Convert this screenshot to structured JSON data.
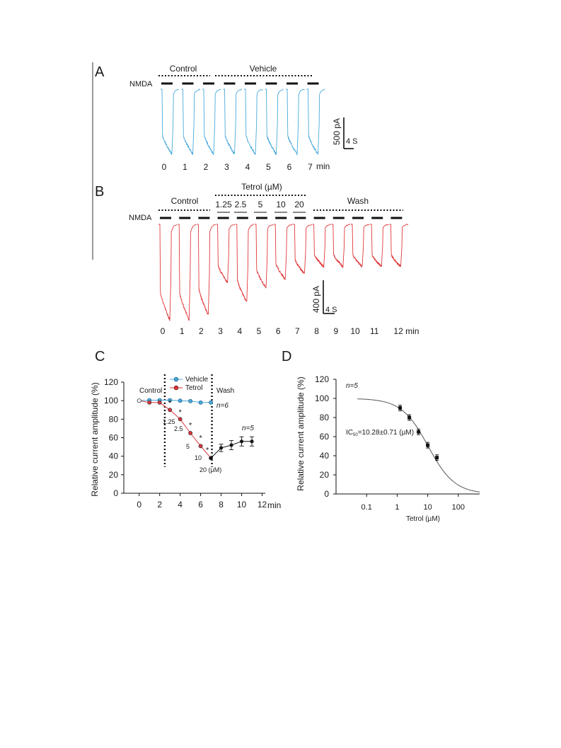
{
  "panels": {
    "A": {
      "letter": "A",
      "groups": [
        "Control",
        "Vehicle"
      ],
      "nmda": "NMDA",
      "scale_current": "500 pA",
      "scale_time": "4 S",
      "times": [
        "0",
        "1",
        "2",
        "3",
        "4",
        "5",
        "6",
        "7"
      ],
      "time_unit": "min",
      "trace_color": "#4aa9dc"
    },
    "B": {
      "letter": "B",
      "groups": [
        "Control",
        "Tetrol (µM)",
        "Wash"
      ],
      "concentrations": [
        "1.25",
        "2.5",
        "5",
        "10",
        "20"
      ],
      "nmda": "NMDA",
      "scale_current": "400 pA",
      "scale_time": "4 S",
      "times": [
        "0",
        "1",
        "2",
        "3",
        "4",
        "5",
        "6",
        "7",
        "8",
        "9",
        "10",
        "11",
        "12 min"
      ],
      "trace_color": "#e0393b"
    },
    "C": {
      "letter": "C",
      "ylabel": "Relative current amplitude (%)",
      "legend": [
        "Vehicle",
        "Tetrol"
      ],
      "phase_labels": [
        "Control",
        "Wash"
      ],
      "n_labels": [
        "n=6",
        "n=5"
      ],
      "conc_labels": [
        "1.25",
        "2.5",
        "5",
        "10",
        "20 (µM)"
      ],
      "sig": "*",
      "x_unit": "min"
    },
    "D": {
      "letter": "D",
      "ylabel": "Relative current amplitude (%)",
      "xlabel": "Tetrol (µM)",
      "n_label": "n=5",
      "ic50_label": "IC",
      "ic50_sub": "50",
      "ic50_value": "=10.28±0.71 (µM)"
    }
  },
  "chart_data": [
    {
      "type": "line",
      "panel": "C",
      "x": [
        0,
        1,
        2,
        3,
        4,
        5,
        6,
        7,
        8,
        9,
        10,
        11
      ],
      "xticks": [
        "0",
        "2",
        "4",
        "6",
        "8",
        "10",
        "12"
      ],
      "yticks": [
        "0",
        "20",
        "40",
        "60",
        "80",
        "100",
        "120"
      ],
      "xlim": [
        -1.5,
        13
      ],
      "ylim": [
        0,
        120
      ],
      "series": [
        {
          "name": "Vehicle",
          "color": "#4aa9dc",
          "x": [
            0,
            1,
            2,
            3,
            4,
            5,
            6,
            7
          ],
          "values": [
            100,
            100.5,
            100.5,
            100.5,
            100,
            99.5,
            98,
            98
          ]
        },
        {
          "name": "Tetrol",
          "color": "#d9343a",
          "x": [
            0,
            1,
            2,
            3,
            4,
            5,
            6,
            7
          ],
          "values": [
            100,
            98,
            98,
            90,
            80,
            65,
            51,
            38
          ]
        },
        {
          "name": "",
          "color": "#111111",
          "x": [
            7,
            8,
            9,
            10,
            11
          ],
          "values": [
            38,
            49,
            52,
            56,
            56
          ],
          "error": [
            0,
            4,
            5,
            5,
            5
          ]
        }
      ],
      "vlines": [
        2.5,
        7.1
      ]
    },
    {
      "type": "scatter",
      "panel": "D",
      "x": [
        1.25,
        2.5,
        5,
        10,
        20
      ],
      "values": [
        90,
        80,
        65,
        51,
        38
      ],
      "fit": {
        "model": "hill",
        "ic50": 10.28,
        "top": 100,
        "bottom": 0
      },
      "xticks": [
        "0.1",
        "1",
        "10",
        "100"
      ],
      "yticks": [
        "0",
        "20",
        "40",
        "60",
        "80",
        "100",
        "120"
      ],
      "xscale": "log",
      "xlim": [
        0.01,
        500
      ],
      "ylim": [
        0,
        120
      ]
    }
  ]
}
